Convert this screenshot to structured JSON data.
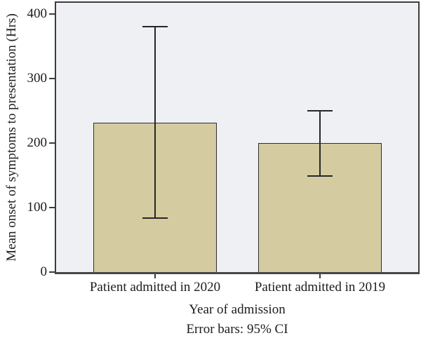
{
  "chart_data": {
    "type": "bar",
    "title": "",
    "xlabel": "Year of admission",
    "ylabel": "Mean onset of symptoms to presentation (Hrs)",
    "note": "Error bars: 95% CI",
    "categories": [
      "Patient admitted in 2020",
      "Patient admitted in 2019"
    ],
    "values": [
      232,
      200
    ],
    "error_bars": {
      "kind": "95% CI",
      "low": [
        83,
        148
      ],
      "high": [
        382,
        251
      ]
    },
    "yticks": [
      0,
      100,
      200,
      300,
      400
    ],
    "ylim": [
      0,
      420
    ],
    "grid": false,
    "legend_position": "none",
    "colors": {
      "bar_fill": "#d4cca0",
      "bar_border": "#2e2e2e",
      "error_bar": "#262626",
      "plot_bg": "#eff0f4",
      "frame": "#3c3c3c",
      "text": "#1c1c1c",
      "page_bg": "#ffffff"
    }
  }
}
